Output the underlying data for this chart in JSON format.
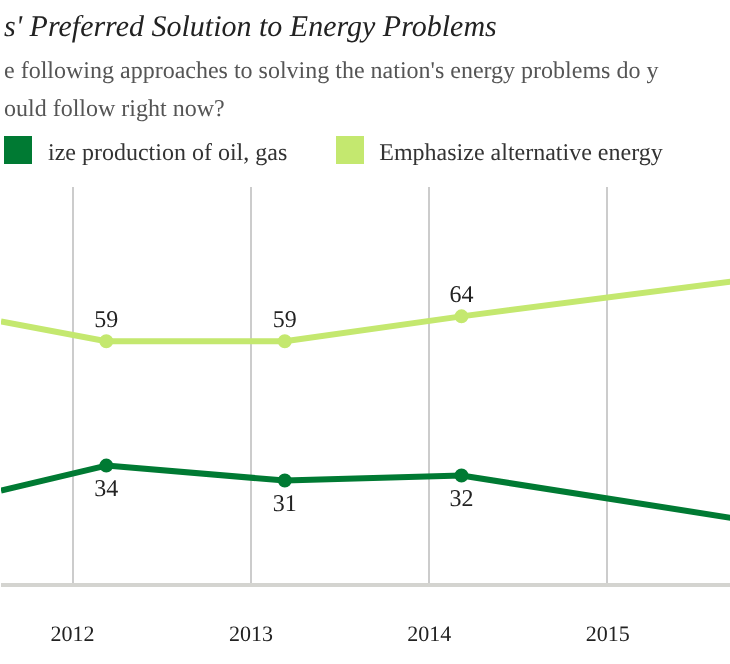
{
  "chart_data": {
    "type": "line",
    "title": "s' Preferred Solution to Energy Problems",
    "subtitle": "e following approaches to solving the nation's energy problems do y\nould follow right now?",
    "x": [
      2011.6,
      2012.19,
      2013.19,
      2014.18,
      2015.69
    ],
    "xlim": [
      2011.6,
      2015.69
    ],
    "xticks": [
      2012,
      2013,
      2014,
      2015
    ],
    "ylim": [
      10,
      90
    ],
    "series": [
      {
        "name": "ize production of oil, gas",
        "color": "#007a33",
        "values": [
          29,
          34,
          31,
          32,
          23.5
        ],
        "value_labels": [
          null,
          "34",
          "31",
          "32",
          null
        ]
      },
      {
        "name": "Emphasize alternative energy",
        "color": "#c4e86f",
        "values": [
          63,
          59,
          59,
          64,
          71
        ],
        "value_labels": [
          null,
          "59",
          "59",
          "64",
          null
        ]
      }
    ],
    "tick_labels": "x",
    "grid": "x",
    "legend": "top",
    "marker": "circle",
    "line_style": "solid"
  }
}
